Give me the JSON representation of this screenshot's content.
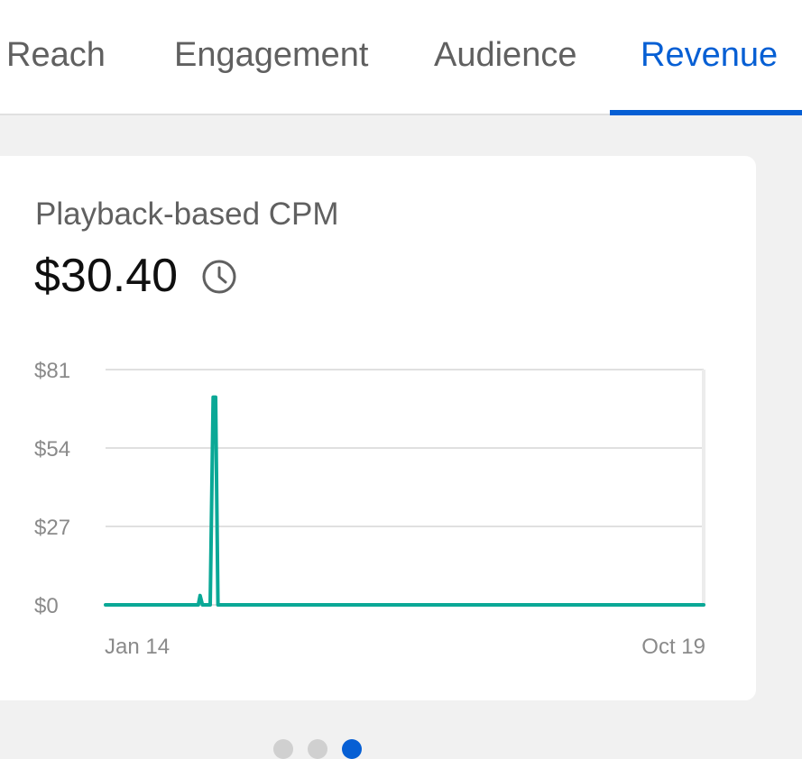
{
  "tabs": [
    {
      "label": "Reach",
      "active": false
    },
    {
      "label": "Engagement",
      "active": false
    },
    {
      "label": "Audience",
      "active": false
    },
    {
      "label": "Revenue",
      "active": true
    }
  ],
  "card": {
    "title": "Playback-based CPM",
    "value": "$30.40",
    "info_icon": "clock-icon"
  },
  "colors": {
    "accent": "#065fd4",
    "series": "#0aa896",
    "grid": "#e0e0e0"
  },
  "chart_data": {
    "type": "line",
    "title": "",
    "xlabel": "",
    "ylabel": "",
    "y_ticks": [
      "$0",
      "$27",
      "$54",
      "$81"
    ],
    "ylim": [
      0,
      81
    ],
    "x_ticks": [
      "Jan 14",
      "Oct 19"
    ],
    "grid": true,
    "series": [
      {
        "x": [
          0,
          0.155,
          0.158,
          0.162,
          0.166,
          0.175,
          0.18,
          0.184,
          0.188,
          0.192,
          1
        ],
        "values": [
          0,
          0,
          3.2,
          0,
          0,
          0,
          71.5,
          71.5,
          0,
          0,
          0
        ]
      }
    ]
  },
  "pager": {
    "count": 3,
    "active_index": 2
  }
}
